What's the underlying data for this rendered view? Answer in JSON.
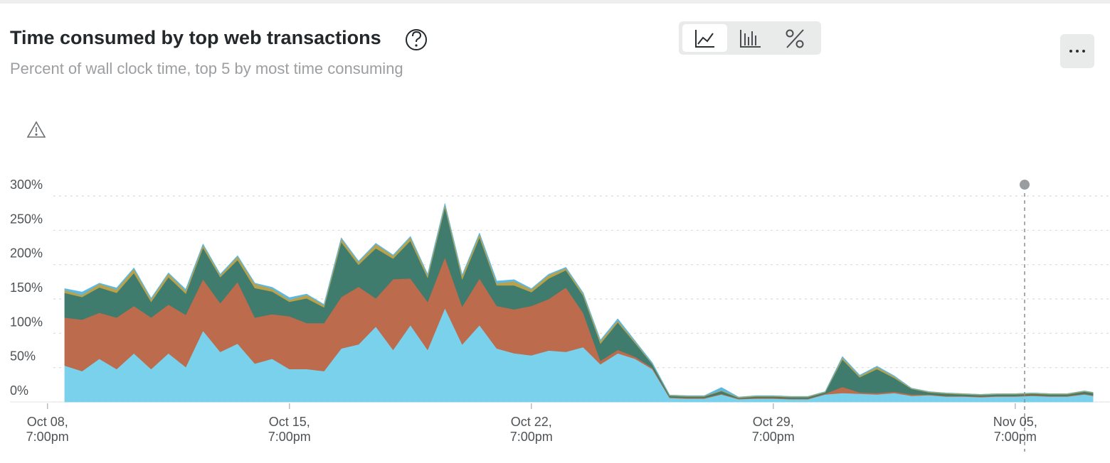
{
  "chart_data": {
    "type": "stacked-area",
    "title": "Time consumed by top web transactions",
    "subtitle": "Percent of wall clock time, top 5 by most time consuming",
    "x": [
      0.5,
      1,
      1.5,
      2,
      2.5,
      3,
      3.5,
      4,
      4.5,
      5,
      5.5,
      6,
      6.5,
      7,
      7.5,
      8,
      8.5,
      9,
      9.5,
      10,
      10.5,
      11,
      11.5,
      12,
      12.5,
      13,
      13.5,
      14,
      14.5,
      15,
      15.5,
      16,
      16.5,
      17,
      17.5,
      18,
      18.5,
      19,
      19.5,
      20,
      20.5,
      21,
      21.5,
      22,
      22.5,
      23,
      23.5,
      24,
      24.5,
      25,
      25.5,
      26,
      26.5,
      27,
      27.5,
      28,
      28.5,
      29,
      29.5,
      30,
      30.25
    ],
    "xlim": [
      -0.2,
      30.33
    ],
    "xticks": [
      {
        "value": 0,
        "label": "Oct 08,\n7:00pm"
      },
      {
        "value": 7,
        "label": "Oct 15,\n7:00pm"
      },
      {
        "value": 14,
        "label": "Oct 22,\n7:00pm"
      },
      {
        "value": 21,
        "label": "Oct 29,\n7:00pm"
      },
      {
        "value": 28,
        "label": "Nov 05,\n7:00pm"
      }
    ],
    "ylim": [
      0,
      300
    ],
    "yticks": [
      {
        "value": 0,
        "label": "0%"
      },
      {
        "value": 50,
        "label": "50%"
      },
      {
        "value": 100,
        "label": "100%"
      },
      {
        "value": 150,
        "label": "150%"
      },
      {
        "value": 200,
        "label": "200%"
      },
      {
        "value": 250,
        "label": "250%"
      },
      {
        "value": 300,
        "label": "300%"
      }
    ],
    "grid": true,
    "series": [
      {
        "color": "#7ad1ec",
        "values": [
          53,
          45,
          63,
          48,
          71,
          48,
          71,
          51,
          104,
          73,
          85,
          56,
          63,
          48,
          48,
          45,
          78,
          84,
          110,
          76,
          112,
          76,
          137,
          84,
          112,
          78,
          71,
          68,
          75,
          73,
          80,
          55,
          71,
          63,
          48,
          6,
          5,
          5,
          11,
          4,
          5,
          5,
          4,
          4,
          11,
          13,
          12,
          11,
          13,
          9,
          10,
          8,
          8,
          7,
          8,
          8,
          9,
          8,
          8,
          11,
          9
        ]
      },
      {
        "color": "#bc6b4d",
        "values": [
          70,
          75,
          67,
          75,
          69,
          75,
          71,
          76,
          75,
          71,
          90,
          67,
          65,
          77,
          67,
          70,
          75,
          84,
          41,
          103,
          68,
          70,
          74,
          55,
          68,
          62,
          64,
          72,
          75,
          94,
          50,
          5,
          5,
          3,
          2,
          1,
          1,
          1,
          1,
          1,
          1,
          1,
          1,
          1,
          1,
          9,
          2,
          2,
          2,
          2,
          1,
          1,
          1,
          1,
          1,
          1,
          1,
          1,
          1,
          1,
          1
        ]
      },
      {
        "color": "#3f7c6d",
        "values": [
          36,
          33,
          37,
          36,
          48,
          23,
          40,
          31,
          46,
          38,
          32,
          43,
          33,
          21,
          36,
          23,
          80,
          32,
          73,
          30,
          55,
          35,
          73,
          40,
          60,
          30,
          35,
          20,
          30,
          25,
          25,
          25,
          40,
          20,
          5,
          2,
          2,
          2,
          4,
          1,
          2,
          2,
          2,
          2,
          2,
          40,
          22,
          35,
          20,
          8,
          3,
          3,
          2,
          2,
          2,
          2,
          2,
          2,
          2,
          3,
          3
        ]
      },
      {
        "color": "#b9a24a",
        "values": [
          4,
          3,
          5,
          5,
          6,
          4,
          5,
          4,
          4,
          3,
          5,
          6,
          4,
          3,
          5,
          3,
          5,
          4,
          6,
          4,
          5,
          4,
          4,
          5,
          5,
          3,
          6,
          4,
          5,
          3,
          3,
          4,
          3,
          2,
          1,
          1,
          1,
          1,
          1,
          1,
          1,
          1,
          1,
          1,
          1,
          3,
          2,
          3,
          2,
          1,
          1,
          1,
          1,
          1,
          1,
          1,
          1,
          1,
          1,
          1,
          1
        ]
      },
      {
        "color": "#5db8e2",
        "values": [
          2,
          4,
          1,
          2,
          1,
          1,
          1,
          2,
          1,
          1,
          1,
          1,
          2,
          3,
          1,
          1,
          1,
          1,
          1,
          1,
          1,
          1,
          1,
          1,
          1,
          3,
          2,
          1,
          1,
          1,
          1,
          1,
          2,
          1,
          1,
          0,
          0,
          0,
          4,
          0,
          0,
          0,
          0,
          0,
          0,
          1,
          1,
          1,
          1,
          0,
          0,
          0,
          0,
          0,
          0,
          0,
          0,
          0,
          0,
          0,
          0
        ]
      }
    ]
  }
}
